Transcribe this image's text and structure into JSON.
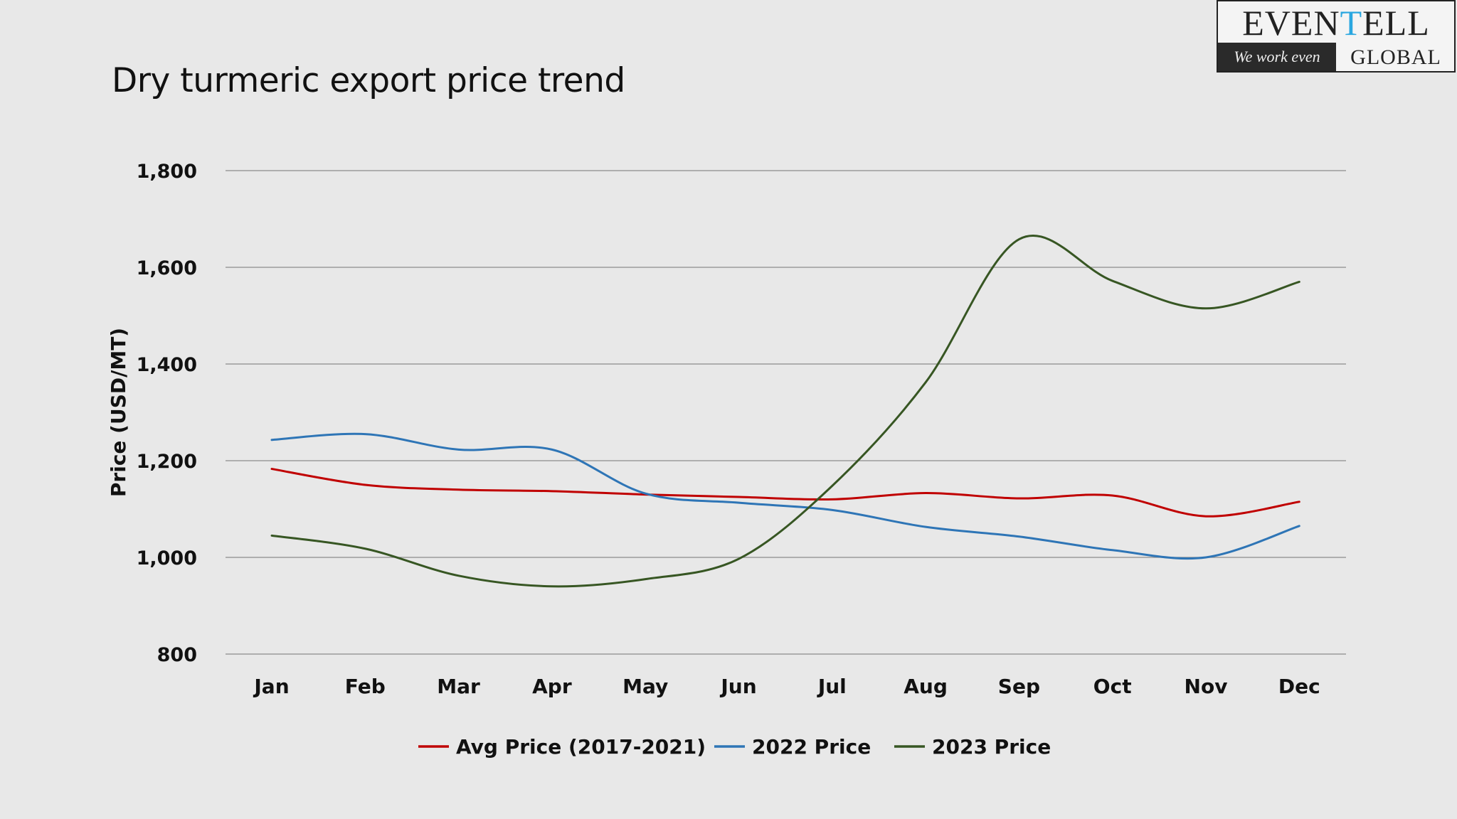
{
  "slide": {
    "title": "Dry turmeric export price trend"
  },
  "logo": {
    "brand_main": "EVEN",
    "brand_accent": "T",
    "brand_end": "ELL",
    "tagline": "We work even",
    "sub": "GLOBAL",
    "accent_color": "#2aa7e0"
  },
  "chart_data": {
    "type": "line",
    "title": "Dry turmeric export price trend",
    "xlabel": "",
    "ylabel": "Price (USD/MT)",
    "ylim": [
      800,
      1800
    ],
    "yticks": [
      800,
      1000,
      1200,
      1400,
      1600,
      1800
    ],
    "ytick_labels": [
      "800",
      "1,000",
      "1,200",
      "1,400",
      "1,600",
      "1,800"
    ],
    "grid": true,
    "legend_position": "bottom-center",
    "categories": [
      "Jan",
      "Feb",
      "Mar",
      "Apr",
      "May",
      "Jun",
      "Jul",
      "Aug",
      "Sep",
      "Oct",
      "Nov",
      "Dec"
    ],
    "series": [
      {
        "name": "Avg Price (2017-2021)",
        "color": "#c00000",
        "values": [
          1183,
          1150,
          1140,
          1137,
          1130,
          1125,
          1120,
          1133,
          1122,
          1128,
          1085,
          1115
        ]
      },
      {
        "name": "2022 Price",
        "color": "#2e75b6",
        "values": [
          1243,
          1255,
          1223,
          1223,
          1132,
          1113,
          1098,
          1063,
          1043,
          1015,
          1000,
          1065
        ]
      },
      {
        "name": "2023 Price",
        "color": "#375623",
        "values": [
          1045,
          1018,
          962,
          940,
          955,
          997,
          1148,
          1362,
          1658,
          1572,
          1515,
          1570
        ]
      }
    ]
  }
}
